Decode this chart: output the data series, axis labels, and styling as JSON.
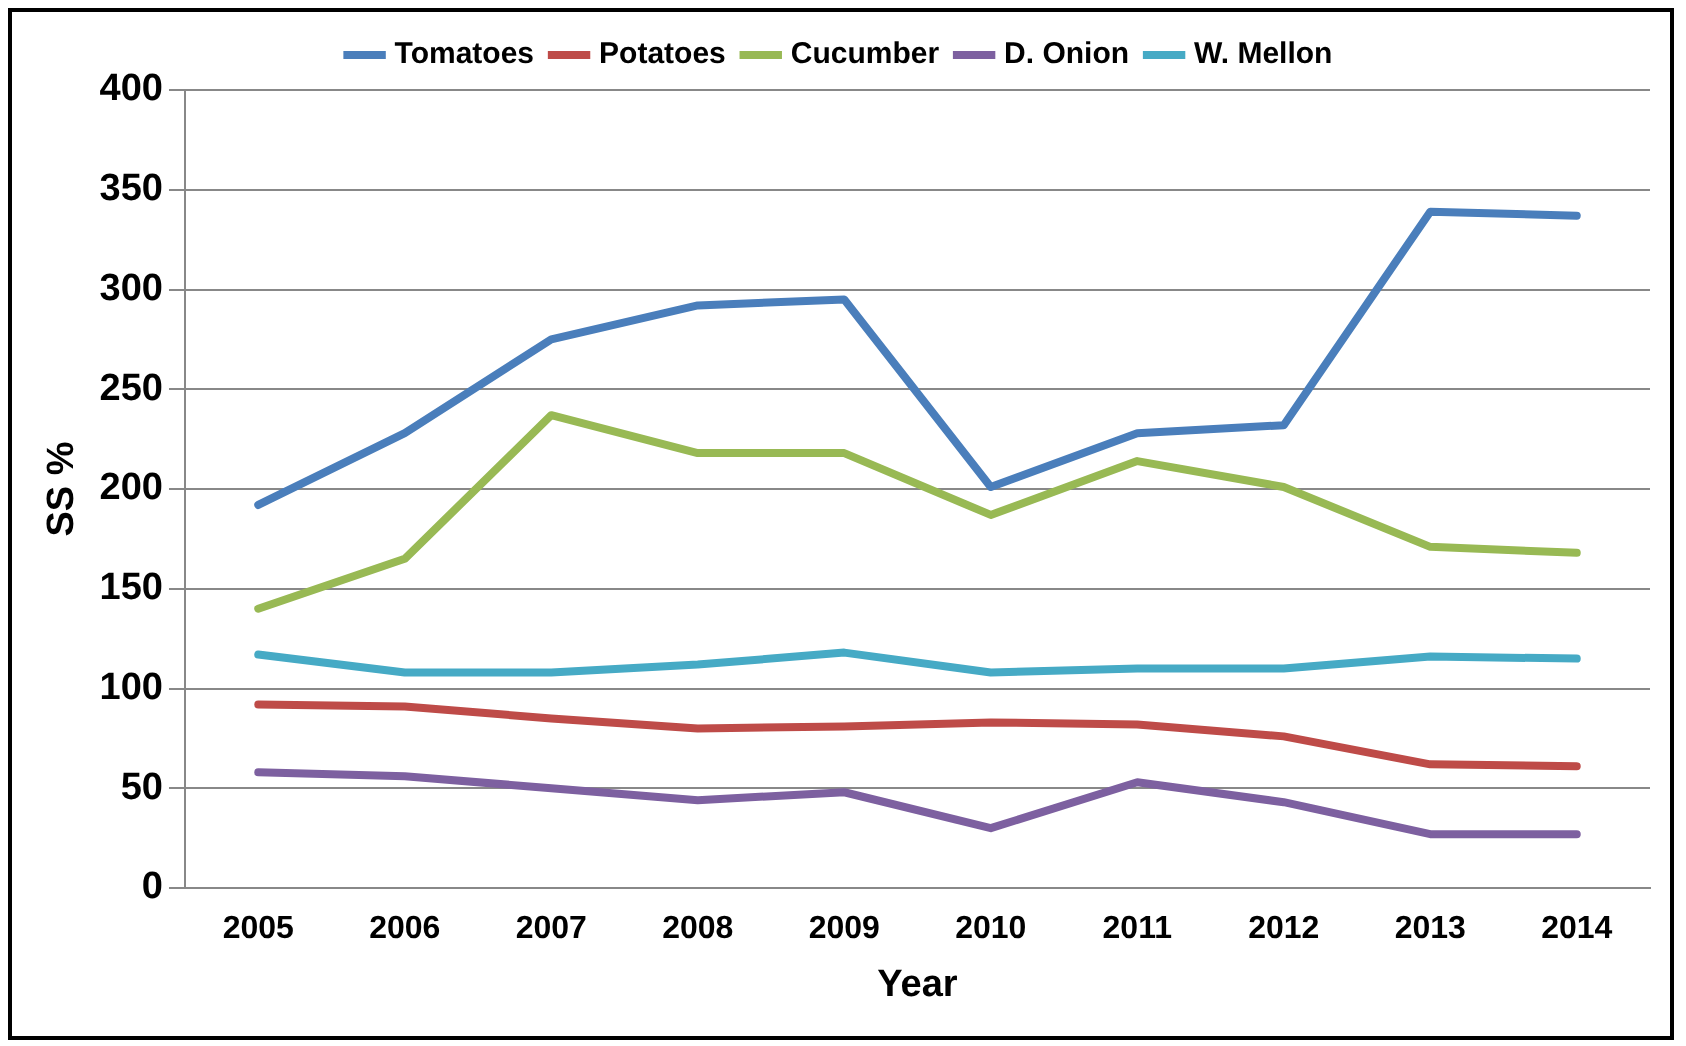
{
  "chart_data": {
    "type": "line",
    "xlabel": "Year",
    "ylabel": "SS %",
    "categories": [
      "2005",
      "2006",
      "2007",
      "2008",
      "2009",
      "2010",
      "2011",
      "2012",
      "2013",
      "2014"
    ],
    "series": [
      {
        "name": "Tomatoes",
        "color": "#4a7ebb",
        "values": [
          192,
          228,
          275,
          292,
          295,
          201,
          228,
          232,
          339,
          337
        ]
      },
      {
        "name": "Potatoes",
        "color": "#be4b48",
        "values": [
          92,
          91,
          85,
          80,
          81,
          83,
          82,
          76,
          62,
          61
        ]
      },
      {
        "name": "Cucumber",
        "color": "#98b954",
        "values": [
          140,
          165,
          237,
          218,
          218,
          187,
          214,
          201,
          171,
          168
        ]
      },
      {
        "name": "D. Onion",
        "color": "#7d60a0",
        "values": [
          58,
          56,
          50,
          44,
          48,
          30,
          53,
          43,
          27,
          27
        ]
      },
      {
        "name": "W. Mellon",
        "color": "#46aac5",
        "values": [
          117,
          108,
          108,
          112,
          118,
          108,
          110,
          110,
          116,
          115
        ]
      }
    ],
    "ylim": [
      0,
      400
    ],
    "yticks": [
      0,
      50,
      100,
      150,
      200,
      250,
      300,
      350,
      400
    ],
    "grid": "y",
    "legend": "top",
    "marker": "none",
    "line_style": "solid"
  }
}
